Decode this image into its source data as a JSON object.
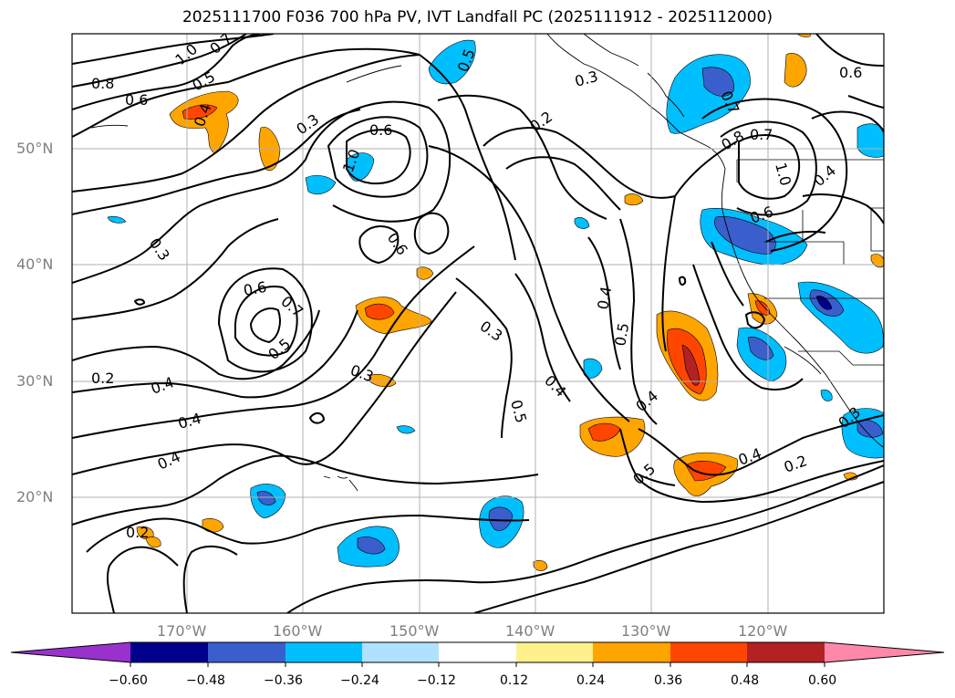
{
  "title": "2025111700 F036 700 hPa PV, IVT Landfall PC (2025111912 - 2025112000)",
  "lat_labels": [
    "50°N",
    "40°N",
    "30°N",
    "20°N"
  ],
  "lon_labels": [
    "170°W",
    "160°W",
    "150°W",
    "140°W",
    "130°W",
    "120°W"
  ],
  "contour_labels": [
    "1.0",
    "0.7",
    "0.5",
    "0.8",
    "0.6",
    "0.4",
    "0.3",
    "0.6",
    "1.0",
    "0.5",
    "0.3",
    "0.2",
    "0.7",
    "0.6",
    "0.8",
    "1.0",
    "0.4",
    "0.7",
    "0.6",
    "0.6",
    "0.3",
    "0.6",
    "0.7",
    "0.5",
    "0.2",
    "0.4",
    "0.4",
    "0.4",
    "0.3",
    "0.3",
    "0.4",
    "0.5",
    "0.5",
    "0.4",
    "0.5",
    "0.4",
    "0.4",
    "0.2",
    "0.2",
    "0.3"
  ],
  "colorbar": {
    "tick_labels": [
      "−0.60",
      "−0.48",
      "−0.36",
      "−0.24",
      "−0.12",
      "0.12",
      "0.24",
      "0.36",
      "0.48",
      "0.60"
    ],
    "colors": [
      "#9932cc",
      "#00008b",
      "#3a5fcd",
      "#00bfff",
      "#b0e2ff",
      "#ffffff",
      "#fff08c",
      "#ffa500",
      "#ff4500",
      "#b22222",
      "#ff88aa"
    ]
  }
}
